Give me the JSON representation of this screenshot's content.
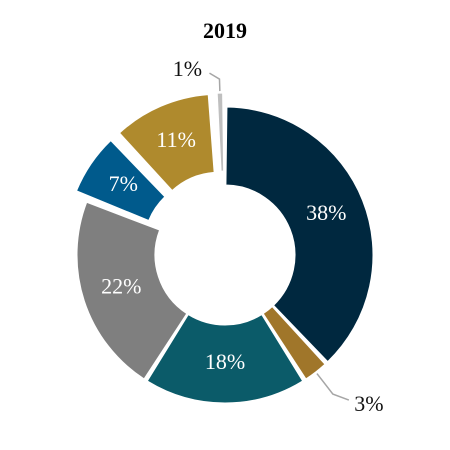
{
  "chart_data": {
    "type": "pie",
    "title": "2019",
    "labels": [
      "38%",
      "3%",
      "18%",
      "22%",
      "7%",
      "11%",
      "1%"
    ],
    "values": [
      38,
      3,
      18,
      22,
      7,
      11,
      1
    ],
    "colors": [
      "#00283f",
      "#a0762a",
      "#0b5b69",
      "#7f7f7f",
      "#005a8c",
      "#af8a2d",
      "#bfbfbf"
    ],
    "label_colors": [
      "#ffffff",
      "#111111",
      "#ffffff",
      "#ffffff",
      "#ffffff",
      "#ffffff",
      "#111111"
    ],
    "label_positions": [
      "inside",
      "outside",
      "inside",
      "inside",
      "inside",
      "inside",
      "outside"
    ],
    "exploded": [
      false,
      false,
      false,
      false,
      true,
      true,
      true
    ],
    "start_angle_deg": 0,
    "donut": true,
    "legend": false
  }
}
